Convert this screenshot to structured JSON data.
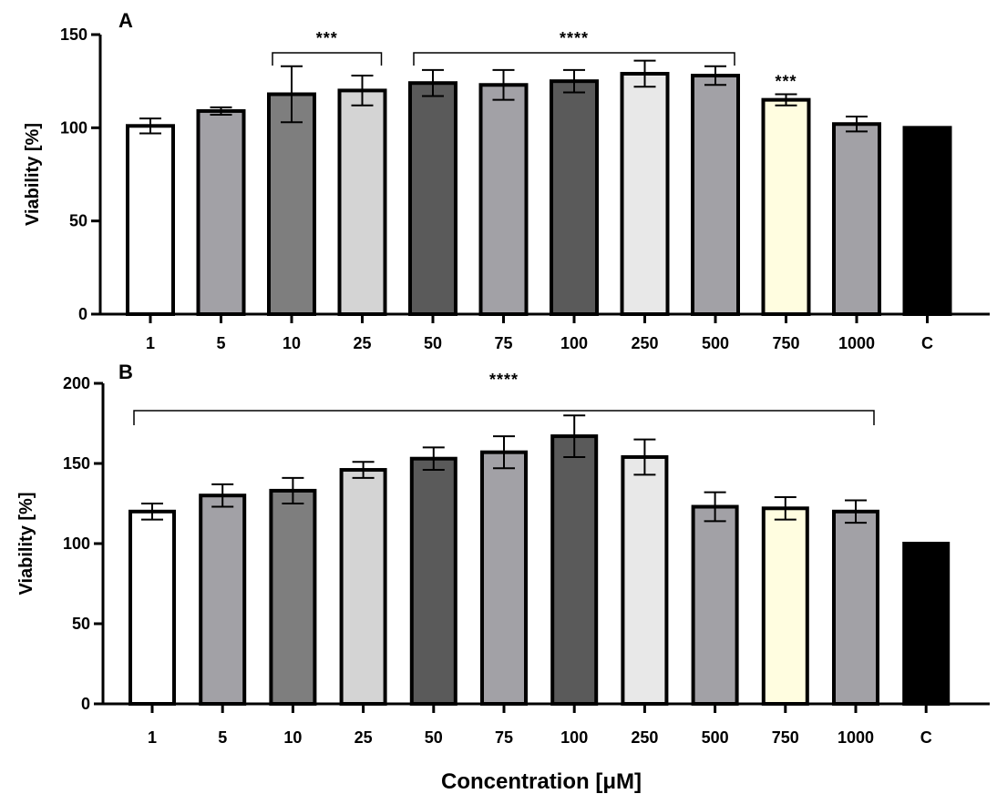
{
  "figure": {
    "xlabel": "Concentration [μM]"
  },
  "chart_data": [
    {
      "type": "bar",
      "panel": "A",
      "ylabel": "Viability [%]",
      "xlabel": "",
      "ylim": [
        0,
        150
      ],
      "yticks": [
        0,
        50,
        100,
        150
      ],
      "categories": [
        "1",
        "5",
        "10",
        "25",
        "50",
        "75",
        "100",
        "250",
        "500",
        "750",
        "1000",
        "C"
      ],
      "values": [
        101,
        109,
        118,
        120,
        124,
        123,
        125,
        129,
        128,
        115,
        102,
        100
      ],
      "errors": [
        4,
        2,
        15,
        8,
        7,
        8,
        6,
        7,
        5,
        3,
        4,
        0
      ],
      "colors": [
        "#ffffff",
        "#a2a1a6",
        "#7e7e7e",
        "#d4d4d4",
        "#5a5a5a",
        "#a2a1a6",
        "#5a5a5a",
        "#e8e8e8",
        "#a2a1a6",
        "#fffde0",
        "#a2a1a6",
        "#000000"
      ],
      "significance": [
        {
          "label": "***",
          "from": 2,
          "to": 3,
          "bracket": true
        },
        {
          "label": "****",
          "from": 4,
          "to": 8,
          "bracket": true
        },
        {
          "label": "***",
          "from": 9,
          "to": 9,
          "bracket": false
        }
      ]
    },
    {
      "type": "bar",
      "panel": "B",
      "ylabel": "Viability [%]",
      "xlabel": "Concentration [μM]",
      "ylim": [
        0,
        200
      ],
      "yticks": [
        0,
        50,
        100,
        150,
        200
      ],
      "categories": [
        "1",
        "5",
        "10",
        "25",
        "50",
        "75",
        "100",
        "250",
        "500",
        "750",
        "1000",
        "C"
      ],
      "values": [
        120,
        130,
        133,
        146,
        153,
        157,
        167,
        154,
        123,
        122,
        120,
        100
      ],
      "errors": [
        5,
        7,
        8,
        5,
        7,
        10,
        13,
        11,
        9,
        7,
        7,
        0
      ],
      "colors": [
        "#ffffff",
        "#a2a1a6",
        "#7e7e7e",
        "#d4d4d4",
        "#5a5a5a",
        "#a2a1a6",
        "#5a5a5a",
        "#e8e8e8",
        "#a2a1a6",
        "#fffde0",
        "#a2a1a6",
        "#000000"
      ],
      "significance": [
        {
          "label": "****",
          "from": 0,
          "to": 10,
          "bracket": true
        }
      ]
    }
  ]
}
